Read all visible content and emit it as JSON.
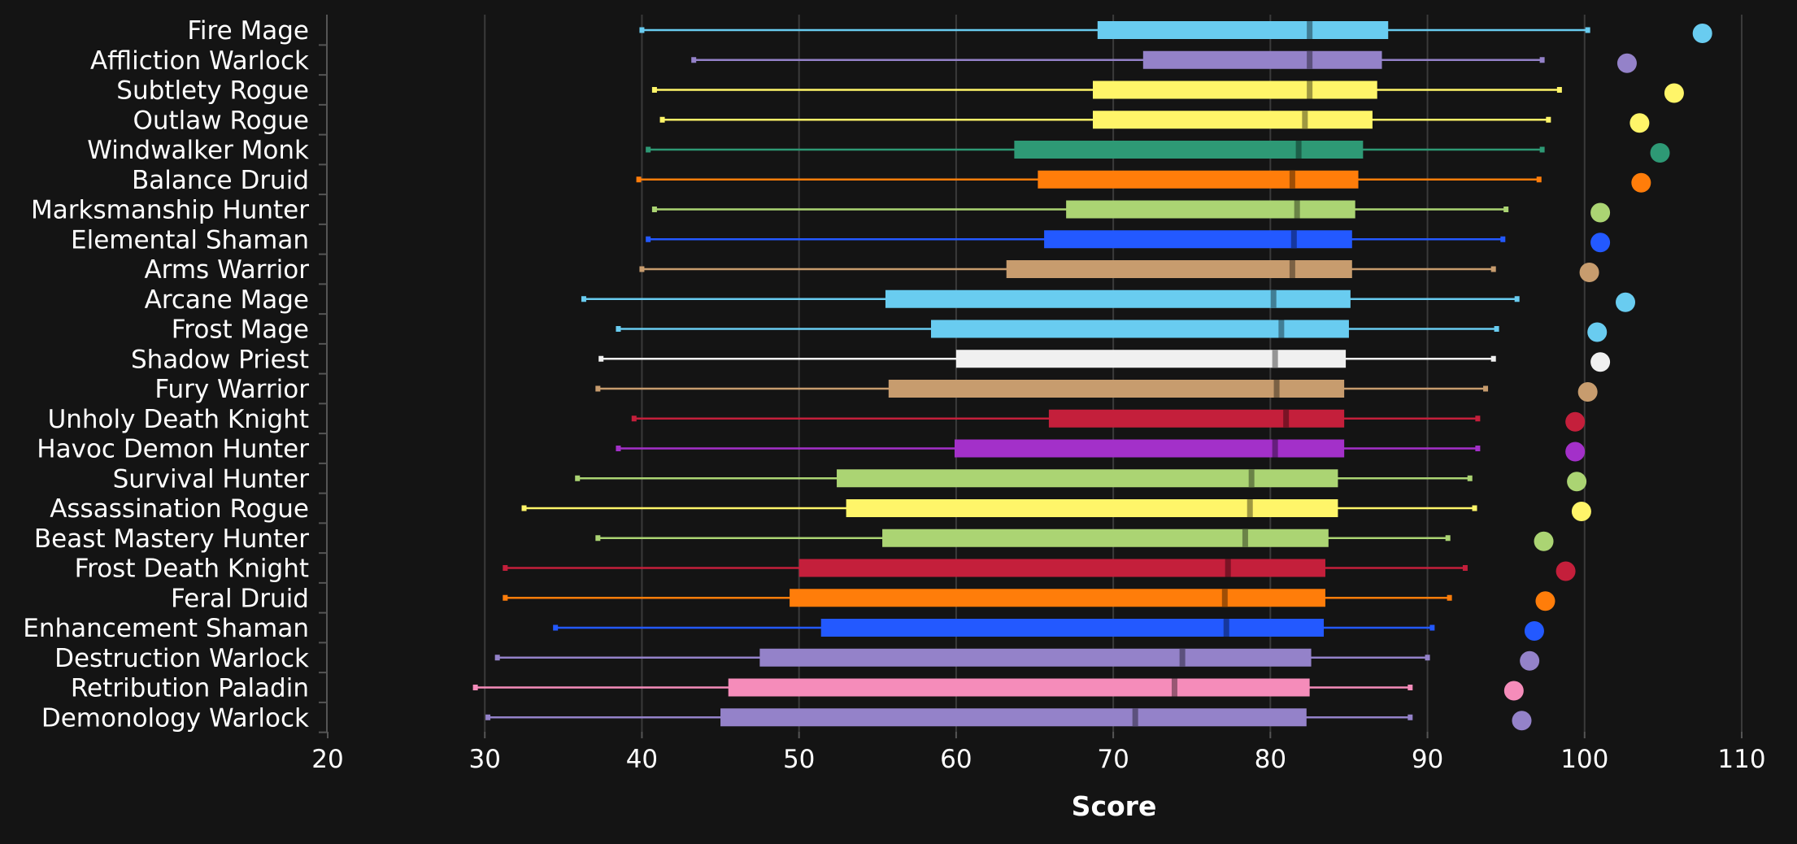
{
  "chart_data": {
    "type": "boxplot",
    "title": "",
    "xlabel": "Score",
    "ylabel": "",
    "xlim": [
      20,
      110
    ],
    "x_ticks": [
      20,
      30,
      40,
      50,
      60,
      70,
      80,
      90,
      100,
      110
    ],
    "grid": "vertical",
    "legend": "none",
    "series": [
      {
        "name": "Fire Mage",
        "color": "#69ccf0",
        "min": 40.0,
        "q1": 69.0,
        "median": 82.5,
        "q3": 87.5,
        "max": 100.2,
        "top": 107.5
      },
      {
        "name": "Affliction Warlock",
        "color": "#9482c9",
        "min": 43.3,
        "q1": 71.9,
        "median": 82.5,
        "q3": 87.1,
        "max": 97.3,
        "top": 102.7
      },
      {
        "name": "Subtlety Rogue",
        "color": "#fff569",
        "min": 40.8,
        "q1": 68.7,
        "median": 82.5,
        "q3": 86.8,
        "max": 98.4,
        "top": 105.7
      },
      {
        "name": "Outlaw Rogue",
        "color": "#fff569",
        "min": 41.3,
        "q1": 68.7,
        "median": 82.2,
        "q3": 86.5,
        "max": 97.7,
        "top": 103.5
      },
      {
        "name": "Windwalker Monk",
        "color": "#2e9975",
        "min": 40.4,
        "q1": 63.7,
        "median": 81.8,
        "q3": 85.9,
        "max": 97.3,
        "top": 104.8
      },
      {
        "name": "Balance Druid",
        "color": "#ff7d0a",
        "min": 39.8,
        "q1": 65.2,
        "median": 81.4,
        "q3": 85.6,
        "max": 97.1,
        "top": 103.6
      },
      {
        "name": "Marksmanship Hunter",
        "color": "#abd473",
        "min": 40.8,
        "q1": 67.0,
        "median": 81.7,
        "q3": 85.4,
        "max": 95.0,
        "top": 101.0
      },
      {
        "name": "Elemental Shaman",
        "color": "#2359ff",
        "min": 40.4,
        "q1": 65.6,
        "median": 81.5,
        "q3": 85.2,
        "max": 94.8,
        "top": 101.0
      },
      {
        "name": "Arms Warrior",
        "color": "#c79c6e",
        "min": 40.0,
        "q1": 63.2,
        "median": 81.4,
        "q3": 85.2,
        "max": 94.2,
        "top": 100.3
      },
      {
        "name": "Arcane Mage",
        "color": "#69ccf0",
        "min": 36.3,
        "q1": 55.5,
        "median": 80.2,
        "q3": 85.1,
        "max": 95.7,
        "top": 102.6
      },
      {
        "name": "Frost Mage",
        "color": "#69ccf0",
        "min": 38.5,
        "q1": 58.4,
        "median": 80.7,
        "q3": 85.0,
        "max": 94.4,
        "top": 100.8
      },
      {
        "name": "Shadow Priest",
        "color": "#f0f0f0",
        "min": 37.4,
        "q1": 60.0,
        "median": 80.3,
        "q3": 84.8,
        "max": 94.2,
        "top": 101.0
      },
      {
        "name": "Fury Warrior",
        "color": "#c79c6e",
        "min": 37.2,
        "q1": 55.7,
        "median": 80.4,
        "q3": 84.7,
        "max": 93.7,
        "top": 100.2
      },
      {
        "name": "Unholy Death Knight",
        "color": "#c41f3b",
        "min": 39.5,
        "q1": 65.9,
        "median": 81.0,
        "q3": 84.7,
        "max": 93.2,
        "top": 99.4
      },
      {
        "name": "Havoc Demon Hunter",
        "color": "#a330c9",
        "min": 38.5,
        "q1": 59.9,
        "median": 80.3,
        "q3": 84.7,
        "max": 93.2,
        "top": 99.4
      },
      {
        "name": "Survival Hunter",
        "color": "#abd473",
        "min": 35.9,
        "q1": 52.4,
        "median": 78.8,
        "q3": 84.3,
        "max": 92.7,
        "top": 99.5
      },
      {
        "name": "Assassination Rogue",
        "color": "#fff569",
        "min": 32.5,
        "q1": 53.0,
        "median": 78.7,
        "q3": 84.3,
        "max": 93.0,
        "top": 99.8
      },
      {
        "name": "Beast Mastery Hunter",
        "color": "#abd473",
        "min": 37.2,
        "q1": 55.3,
        "median": 78.4,
        "q3": 83.7,
        "max": 91.3,
        "top": 97.4
      },
      {
        "name": "Frost Death Knight",
        "color": "#c41f3b",
        "min": 31.3,
        "q1": 50.0,
        "median": 77.3,
        "q3": 83.5,
        "max": 92.4,
        "top": 98.8
      },
      {
        "name": "Feral Druid",
        "color": "#ff7d0a",
        "min": 31.3,
        "q1": 49.4,
        "median": 77.1,
        "q3": 83.5,
        "max": 91.4,
        "top": 97.5
      },
      {
        "name": "Enhancement Shaman",
        "color": "#2359ff",
        "min": 34.5,
        "q1": 51.4,
        "median": 77.2,
        "q3": 83.4,
        "max": 90.3,
        "top": 96.8
      },
      {
        "name": "Destruction Warlock",
        "color": "#9482c9",
        "min": 30.8,
        "q1": 47.5,
        "median": 74.4,
        "q3": 82.6,
        "max": 90.0,
        "top": 96.5
      },
      {
        "name": "Retribution Paladin",
        "color": "#f58cba",
        "min": 29.4,
        "q1": 45.5,
        "median": 73.9,
        "q3": 82.5,
        "max": 88.9,
        "top": 95.5
      },
      {
        "name": "Demonology Warlock",
        "color": "#9482c9",
        "min": 30.2,
        "q1": 45.0,
        "median": 71.4,
        "q3": 82.3,
        "max": 88.9,
        "top": 96.0
      }
    ]
  }
}
